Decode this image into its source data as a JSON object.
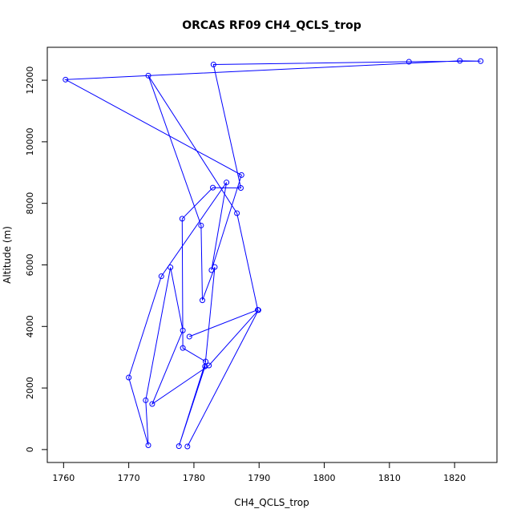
{
  "chart_data": {
    "type": "line",
    "title": "ORCAS RF09 CH4_QCLS_trop",
    "xlabel": "CH4_QCLS_trop",
    "ylabel": "Altitude (m)",
    "xlim": [
      1757.5,
      1826.5
    ],
    "ylim": [
      -420,
      13070
    ],
    "xticks": [
      1760,
      1770,
      1780,
      1790,
      1800,
      1810,
      1820
    ],
    "yticks": [
      0,
      2000,
      4000,
      6000,
      8000,
      10000,
      12000
    ],
    "marker": "open-circle",
    "grid": false,
    "series": [
      {
        "color": "#0000ff",
        "points": [
          [
            1779.0,
            100
          ],
          [
            1789.9,
            4530
          ],
          [
            1782.3,
            2730
          ],
          [
            1773.6,
            1480
          ],
          [
            1778.3,
            3870
          ],
          [
            1776.4,
            5920
          ],
          [
            1772.6,
            1600
          ],
          [
            1773.0,
            140
          ],
          [
            1770.0,
            2340
          ],
          [
            1775.0,
            5630
          ],
          [
            1785.0,
            8680
          ],
          [
            1782.7,
            5830
          ],
          [
            1787.3,
            8920
          ],
          [
            1760.3,
            12020
          ],
          [
            1820.8,
            12630
          ],
          [
            1824.0,
            12620
          ],
          [
            1813.0,
            12600
          ],
          [
            1783.0,
            12510
          ],
          [
            1787.2,
            8500
          ],
          [
            1782.9,
            8510
          ],
          [
            1778.2,
            7500
          ],
          [
            1778.3,
            3300
          ],
          [
            1781.8,
            2860
          ],
          [
            1777.7,
            110
          ],
          [
            1781.7,
            2700
          ],
          [
            1783.2,
            5930
          ],
          [
            1781.3,
            4850
          ],
          [
            1781.1,
            7280
          ],
          [
            1773.0,
            12150
          ],
          [
            1786.6,
            7680
          ],
          [
            1789.8,
            4540
          ],
          [
            1779.3,
            3670
          ]
        ]
      }
    ]
  }
}
